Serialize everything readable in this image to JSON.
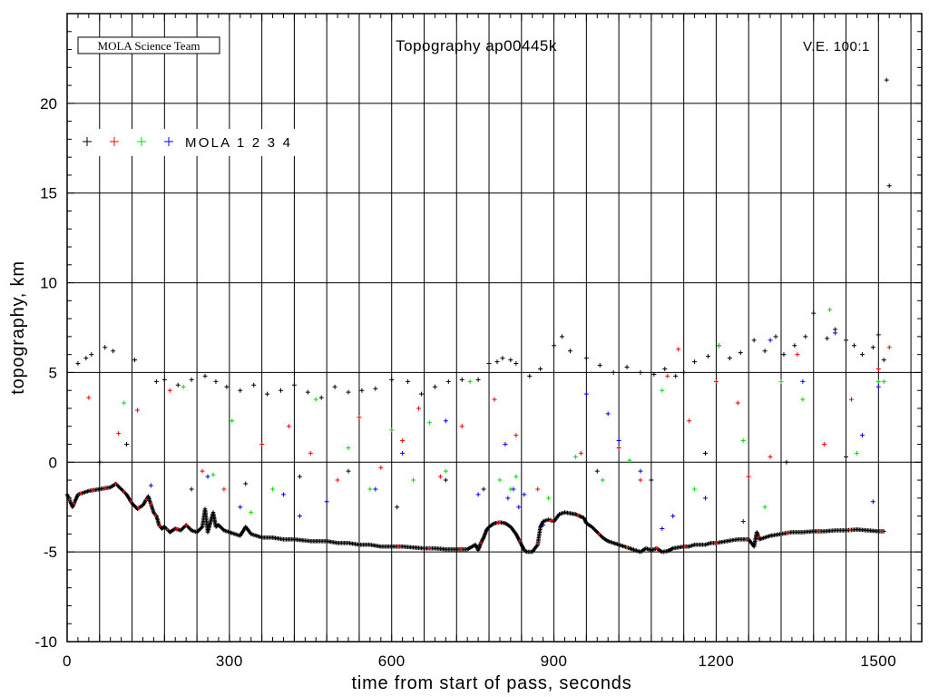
{
  "chart_data": {
    "type": "scatter",
    "title": "Topography ap00445k",
    "badge": "MOLA Science Team",
    "ve_label": "V.E. 100:1",
    "xlabel": "time from start of pass, seconds",
    "ylabel": "topography, km",
    "xlim": [
      0,
      1580
    ],
    "ylim": [
      -10,
      25
    ],
    "xticks": [
      0,
      300,
      600,
      900,
      1200,
      1500
    ],
    "yticks": [
      -10,
      -5,
      0,
      5,
      10,
      15,
      20
    ],
    "xticklabels": [
      "0",
      "300",
      "600",
      "900",
      "1200",
      "1500"
    ],
    "yticklabels": [
      "-10",
      "-5",
      "0",
      "5",
      "10",
      "15",
      "20"
    ],
    "grid": true,
    "legend_position": "top-left",
    "legend_label": "MOLA 1 2 3 4",
    "legend_numbers": [
      "1",
      "2",
      "3",
      "4"
    ],
    "colors": {
      "ch1": "#000000",
      "ch2": "#ff0000",
      "ch3": "#00e000",
      "ch4": "#0000ff"
    },
    "ground_track": {
      "x": [
        0,
        10,
        20,
        40,
        60,
        80,
        90,
        100,
        110,
        120,
        130,
        140,
        150,
        160,
        165,
        170,
        175,
        180,
        190,
        200,
        210,
        220,
        230,
        240,
        250,
        255,
        260,
        270,
        275,
        280,
        290,
        300,
        310,
        320,
        330,
        340,
        350,
        360,
        380,
        400,
        420,
        450,
        480,
        500,
        520,
        540,
        560,
        580,
        600,
        620,
        640,
        660,
        680,
        700,
        720,
        740,
        755,
        760,
        765,
        770,
        775,
        780,
        790,
        800,
        810,
        820,
        830,
        840,
        845,
        850,
        860,
        870,
        875,
        880,
        890,
        900,
        910,
        920,
        940,
        955,
        960,
        970,
        980,
        990,
        1000,
        1010,
        1020,
        1030,
        1040,
        1050,
        1060,
        1070,
        1080,
        1090,
        1100,
        1110,
        1120,
        1130,
        1140,
        1150,
        1160,
        1170,
        1180,
        1190,
        1200,
        1220,
        1240,
        1260,
        1270,
        1275,
        1280,
        1290,
        1300,
        1320,
        1340,
        1360,
        1380,
        1400,
        1420,
        1440,
        1460,
        1480,
        1500,
        1510
      ],
      "y": [
        -1.8,
        -2.5,
        -1.8,
        -1.6,
        -1.5,
        -1.4,
        -1.2,
        -1.5,
        -1.8,
        -2.3,
        -2.6,
        -2.4,
        -1.9,
        -2.8,
        -3.0,
        -3.5,
        -3.7,
        -3.6,
        -3.9,
        -3.7,
        -3.8,
        -3.5,
        -3.8,
        -3.9,
        -3.6,
        -2.6,
        -3.9,
        -2.8,
        -3.6,
        -3.5,
        -3.8,
        -3.9,
        -4.0,
        -4.1,
        -3.6,
        -4.0,
        -4.1,
        -4.2,
        -4.2,
        -4.3,
        -4.3,
        -4.4,
        -4.4,
        -4.5,
        -4.5,
        -4.6,
        -4.6,
        -4.7,
        -4.7,
        -4.7,
        -4.75,
        -4.8,
        -4.8,
        -4.85,
        -4.85,
        -4.85,
        -4.6,
        -4.9,
        -4.5,
        -4.2,
        -3.8,
        -3.6,
        -3.4,
        -3.35,
        -3.4,
        -3.6,
        -4.0,
        -4.6,
        -4.9,
        -5.0,
        -5.0,
        -4.6,
        -3.6,
        -3.3,
        -3.2,
        -3.3,
        -2.9,
        -2.8,
        -2.9,
        -3.1,
        -3.4,
        -3.6,
        -3.9,
        -4.2,
        -4.4,
        -4.5,
        -4.6,
        -4.7,
        -4.8,
        -4.9,
        -5.0,
        -4.8,
        -4.9,
        -4.8,
        -5.0,
        -4.95,
        -4.8,
        -4.75,
        -4.7,
        -4.7,
        -4.6,
        -4.6,
        -4.6,
        -4.5,
        -4.5,
        -4.4,
        -4.3,
        -4.3,
        -4.7,
        -3.9,
        -4.3,
        -4.2,
        -4.1,
        -4.0,
        -3.9,
        -3.9,
        -3.85,
        -3.85,
        -3.8,
        -3.8,
        -3.75,
        -3.8,
        -3.85,
        -3.85
      ]
    },
    "series": [
      {
        "channel": "1",
        "x": [
          20,
          35,
          45,
          70,
          85,
          125,
          165,
          180,
          205,
          230,
          255,
          275,
          295,
          320,
          345,
          370,
          395,
          420,
          445,
          470,
          495,
          520,
          545,
          570,
          600,
          630,
          655,
          680,
          705,
          730,
          760,
          780,
          795,
          805,
          820,
          830,
          855,
          875,
          900,
          915,
          930,
          960,
          985,
          1010,
          1035,
          1060,
          1085,
          1105,
          1125,
          1140,
          1160,
          1185,
          1205,
          1225,
          1245,
          1270,
          1290,
          1310,
          1325,
          1345,
          1365,
          1380,
          1405,
          1420,
          1440,
          1455,
          1470,
          1490,
          1500,
          1510,
          1515,
          1520,
          60,
          110,
          150,
          230,
          330,
          430,
          520,
          610,
          700,
          770,
          980,
          1080,
          1180,
          1330,
          1440
        ],
        "y": [
          5.5,
          5.8,
          6.0,
          6.4,
          6.2,
          5.7,
          4.5,
          4.6,
          4.3,
          4.6,
          4.8,
          4.5,
          4.2,
          4.0,
          4.3,
          3.8,
          4.0,
          4.3,
          3.9,
          3.6,
          4.2,
          3.9,
          4.0,
          4.1,
          4.6,
          4.5,
          3.8,
          4.2,
          4.5,
          4.6,
          4.6,
          5.5,
          5.6,
          5.8,
          5.7,
          5.5,
          4.8,
          5.2,
          6.5,
          7.0,
          6.2,
          5.8,
          5.4,
          5.0,
          5.3,
          5.0,
          4.9,
          5.2,
          4.8,
          5.0,
          5.6,
          5.9,
          6.5,
          5.8,
          6.1,
          6.8,
          6.2,
          7.0,
          6.0,
          6.5,
          7.0,
          8.3,
          6.9,
          7.4,
          6.8,
          6.5,
          6.0,
          6.4,
          7.1,
          5.7,
          21.3,
          15.4,
          0.0,
          1.0,
          -2.0,
          -1.5,
          -1.2,
          -0.8,
          -0.5,
          -2.5,
          -1.0,
          -1.5,
          -0.5,
          -1.0,
          0.5,
          0.0,
          0.3
        ]
      },
      {
        "channel": "2",
        "x": [
          40,
          95,
          130,
          190,
          250,
          290,
          360,
          410,
          450,
          500,
          540,
          580,
          620,
          650,
          690,
          730,
          790,
          830,
          870,
          950,
          1020,
          1060,
          1110,
          1130,
          1150,
          1200,
          1240,
          1260,
          1300,
          1350,
          1400,
          1450,
          1500,
          1520
        ],
        "y": [
          3.6,
          1.6,
          2.9,
          4.0,
          -0.5,
          -1.5,
          1.0,
          2.0,
          0.5,
          -1.0,
          2.5,
          -0.3,
          1.2,
          3.0,
          -0.8,
          2.0,
          3.5,
          1.5,
          -1.5,
          0.5,
          0.8,
          -1.0,
          4.8,
          6.3,
          2.3,
          4.5,
          3.3,
          -0.8,
          0.3,
          6.0,
          1.0,
          3.5,
          5.2,
          6.4
        ]
      },
      {
        "channel": "3",
        "x": [
          105,
          215,
          270,
          305,
          340,
          380,
          460,
          520,
          560,
          600,
          640,
          670,
          700,
          745,
          800,
          820,
          830,
          890,
          940,
          990,
          1040,
          1100,
          1160,
          1205,
          1250,
          1290,
          1320,
          1360,
          1410,
          1460,
          1500,
          1510
        ],
        "y": [
          3.3,
          4.2,
          -0.7,
          2.3,
          -2.8,
          -1.5,
          3.5,
          0.8,
          -1.5,
          1.8,
          -1.0,
          2.2,
          -0.5,
          4.5,
          -1.0,
          -1.5,
          -0.8,
          -2.0,
          0.3,
          -1.0,
          0.1,
          4.0,
          -1.5,
          6.5,
          1.2,
          -2.5,
          4.5,
          3.5,
          8.5,
          0.5,
          4.5,
          4.5
        ]
      },
      {
        "channel": "4",
        "x": [
          155,
          260,
          320,
          400,
          430,
          480,
          570,
          620,
          700,
          760,
          810,
          815,
          825,
          835,
          845,
          880,
          960,
          1000,
          1020,
          1060,
          1100,
          1120,
          1180,
          1250,
          1300,
          1360,
          1420,
          1470,
          1490,
          1500
        ],
        "y": [
          -1.3,
          -0.8,
          -2.5,
          -1.8,
          -3.0,
          -2.2,
          -1.5,
          0.5,
          2.3,
          -1.8,
          1.0,
          -2.0,
          -1.5,
          -2.5,
          -1.8,
          -3.5,
          3.8,
          2.7,
          1.2,
          -0.5,
          -3.7,
          -3.0,
          -2.0,
          -3.3,
          6.8,
          4.5,
          7.2,
          1.5,
          -2.2,
          4.2
        ]
      }
    ]
  }
}
